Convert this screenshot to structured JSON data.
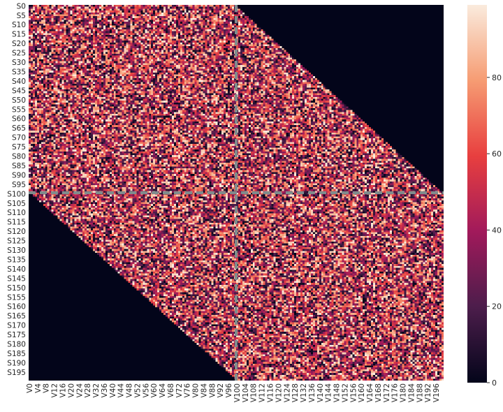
{
  "chart_data": {
    "type": "heatmap",
    "title": "",
    "xlabel": "",
    "ylabel": "",
    "rows": 200,
    "cols": 200,
    "row_prefix": "S",
    "col_prefix": "V",
    "row_tick_step": 5,
    "col_tick_step": 4,
    "value_range": [
      0,
      99
    ],
    "mask": "cells with (col - row) >= 100 or (row - col) >= 100 are 0; remaining cells are noisy values spread roughly uniformly between 0 and 99",
    "separator_lines": {
      "row": 100,
      "col": 100,
      "style": "dashed",
      "color": "#7f8c8d"
    },
    "colorbar": {
      "ticks": [
        0,
        20,
        40,
        60,
        80
      ],
      "colormap": "rocket",
      "stops": [
        "#03051a",
        "#4c1d4b",
        "#a11a5b",
        "#e83f3f",
        "#f69c73",
        "#faebdd"
      ]
    }
  }
}
